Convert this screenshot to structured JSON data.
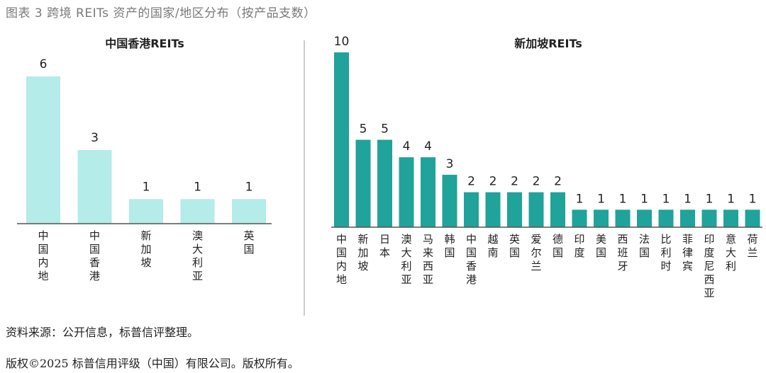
{
  "figure_title": "图表 3 跨境 REITs 资产的国家/地区分布（按产品支数）",
  "source_note": "资料来源：公开信息，标普信评整理。",
  "copyright": "版权©2025 标普信用评级（中国）有限公司。版权所有。",
  "colors": {
    "hk_bar": "#b3ece8",
    "sg_bar": "#1fa39a",
    "axis": "#555555",
    "divider": "#bbbbbb"
  },
  "chart_data": [
    {
      "type": "bar",
      "title": "中国香港REITs",
      "categories": [
        "中国内地",
        "中国香港",
        "新加坡",
        "澳大利亚",
        "英国"
      ],
      "values": [
        6,
        3,
        1,
        1,
        1
      ],
      "ylim": [
        0,
        6
      ],
      "xlabel": "",
      "ylabel": ""
    },
    {
      "type": "bar",
      "title": "新加坡REITs",
      "categories": [
        "中国内地",
        "新加坡",
        "日本",
        "澳大利亚",
        "马来西亚",
        "韩国",
        "中国香港",
        "越南",
        "英国",
        "爱尔兰",
        "德国",
        "印度",
        "美国",
        "西班牙",
        "法国",
        "比利时",
        "菲律宾",
        "印度尼西亚",
        "意大利",
        "荷兰"
      ],
      "values": [
        10,
        5,
        5,
        4,
        4,
        3,
        2,
        2,
        2,
        2,
        2,
        1,
        1,
        1,
        1,
        1,
        1,
        1,
        1,
        1
      ],
      "ylim": [
        0,
        10
      ],
      "xlabel": "",
      "ylabel": ""
    }
  ]
}
